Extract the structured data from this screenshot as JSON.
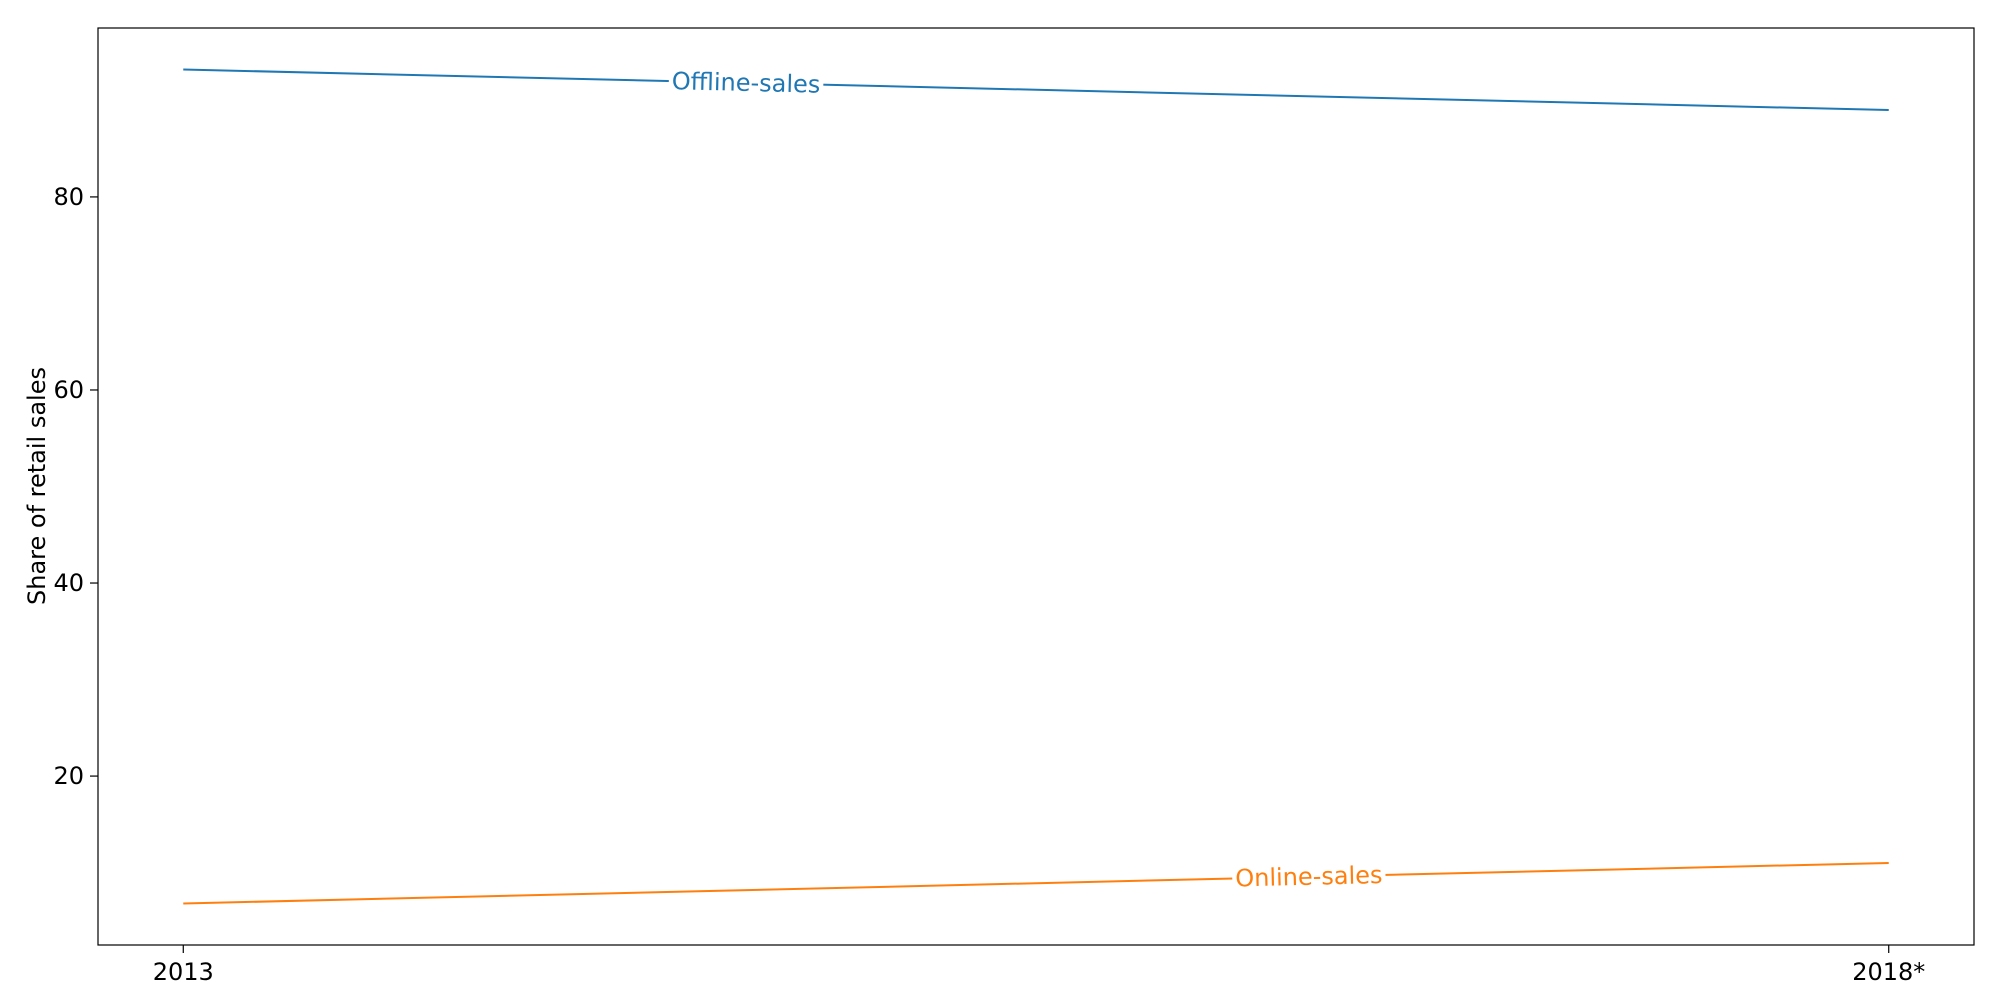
{
  "chart_data": {
    "type": "line",
    "title": "",
    "xlabel": "",
    "ylabel": "Share of retail sales",
    "categories": [
      "2013",
      "2018*"
    ],
    "xlim": [
      -0.05,
      1.05
    ],
    "ylim": [
      2.5,
      97.5
    ],
    "yticks": [
      20,
      40,
      60,
      80
    ],
    "grid": false,
    "legend": "none",
    "series": [
      {
        "name": "Offline-sales",
        "color": "#1f77b4",
        "values": [
          93.2,
          89.0
        ],
        "label_at": 0.33
      },
      {
        "name": "Online-sales",
        "color": "#ff7f0e",
        "values": [
          6.8,
          11.0
        ],
        "label_at": 0.66
      }
    ]
  }
}
